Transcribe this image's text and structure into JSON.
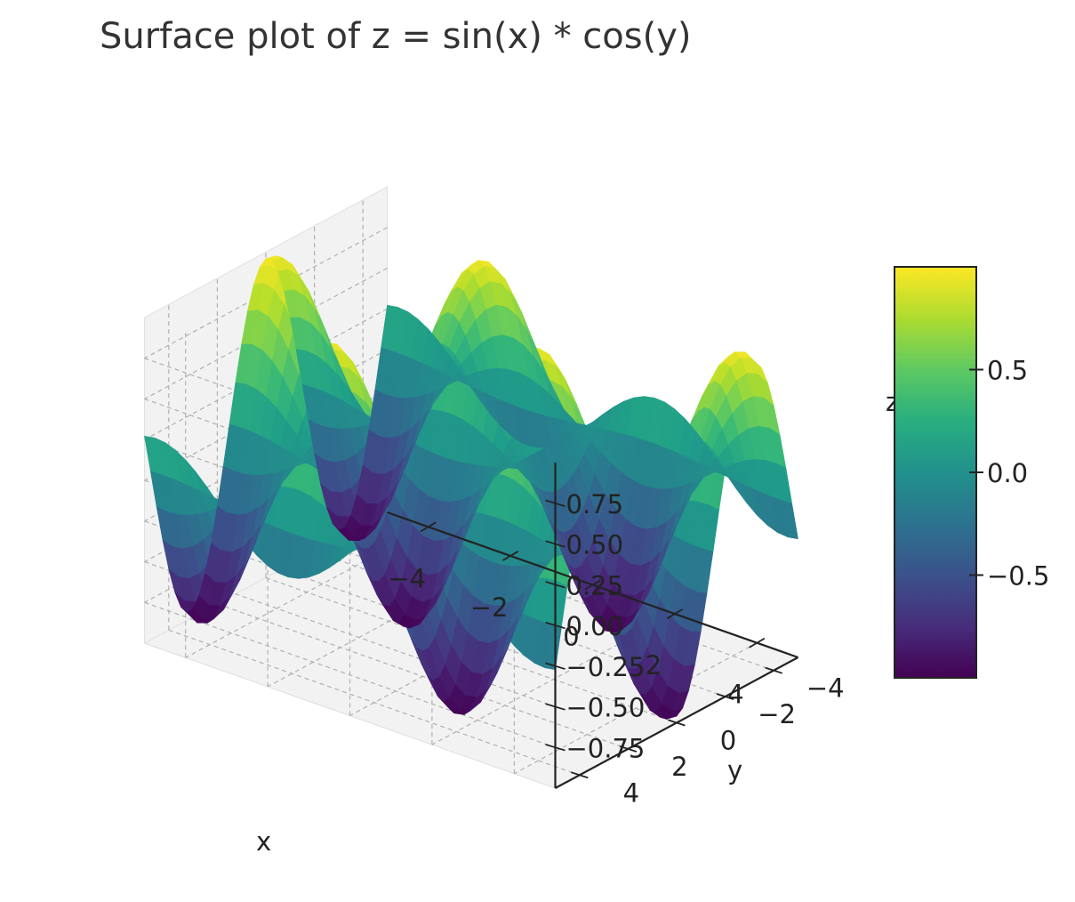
{
  "chart_data": {
    "type": "surface",
    "title": "Surface plot of z = sin(x) * cos(y)",
    "function": "z = sin(x) * cos(y)",
    "xlabel": "x",
    "ylabel": "y",
    "zlabel": "z",
    "xlim": [
      -5,
      5
    ],
    "ylim": [
      -5,
      5
    ],
    "zlim": [
      -1,
      1
    ],
    "x_ticks": [
      "−4",
      "−2",
      "0",
      "2",
      "4"
    ],
    "x_tick_values": [
      -4,
      -2,
      0,
      2,
      4
    ],
    "y_ticks": [
      "−4",
      "−2",
      "0",
      "2",
      "4"
    ],
    "y_tick_values": [
      -4,
      -2,
      0,
      2,
      4
    ],
    "z_ticks": [
      "0.75",
      "0.50",
      "0.25",
      "0.00",
      "−0.25",
      "−0.50",
      "−0.75"
    ],
    "z_tick_values": [
      0.75,
      0.5,
      0.25,
      0.0,
      -0.25,
      -0.5,
      -0.75
    ],
    "colormap": "viridis",
    "colorbar": {
      "ticks": [
        "0.5",
        "0.0",
        "−0.5"
      ],
      "tick_values": [
        0.5,
        0.0,
        -0.5
      ],
      "range": [
        -1,
        1
      ]
    },
    "grid": true,
    "pane_color": "#f2f2f2",
    "grid_color": "#b0b0b0"
  }
}
